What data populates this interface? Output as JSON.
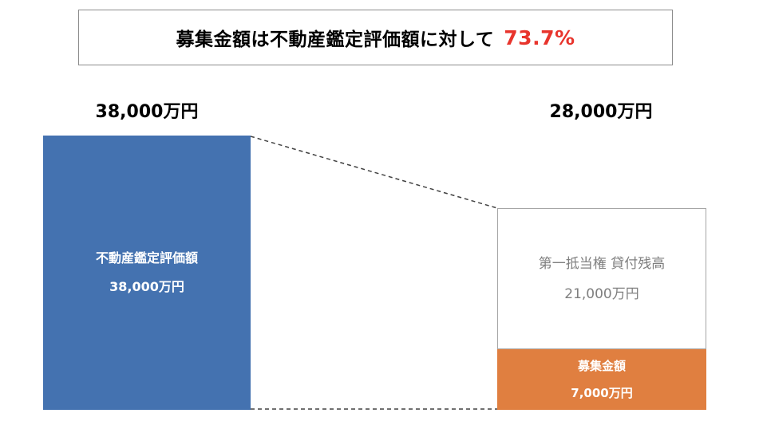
{
  "title": {
    "text": "募集金額は不動産鑑定評価額に対して",
    "percentage": "73.7%",
    "percentage_color": "#e8342c"
  },
  "left_column": {
    "total": "38,000万円",
    "bar": {
      "label": "不動産鑑定評価額",
      "value": "38,000万円",
      "color": "#4472b0"
    }
  },
  "right_column": {
    "total": "28,000万円",
    "loan": {
      "label": "第一抵当権 貸付残高",
      "value": "21,000万円"
    },
    "raise": {
      "label": "募集金額",
      "value": "7,000万円",
      "color": "#e07f40"
    }
  }
}
